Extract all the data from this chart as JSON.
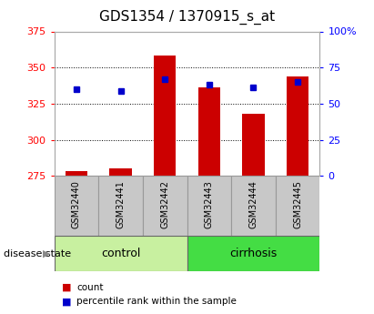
{
  "title": "GDS1354 / 1370915_s_at",
  "categories": [
    "GSM32440",
    "GSM32441",
    "GSM32442",
    "GSM32443",
    "GSM32444",
    "GSM32445"
  ],
  "red_values": [
    278,
    280,
    358,
    336,
    318,
    344
  ],
  "blue_values": [
    60,
    59,
    67,
    63,
    61,
    65
  ],
  "ylim_left": [
    275,
    375
  ],
  "ylim_right": [
    0,
    100
  ],
  "yticks_left": [
    275,
    300,
    325,
    350,
    375
  ],
  "yticks_right": [
    0,
    25,
    50,
    75,
    100
  ],
  "ytick_labels_right": [
    "0",
    "25",
    "50",
    "75",
    "100%"
  ],
  "group_labels": [
    "control",
    "cirrhosis"
  ],
  "group_ranges": [
    [
      0,
      3
    ],
    [
      3,
      6
    ]
  ],
  "group_colors_light": "#c8f0a0",
  "group_colors_dark": "#44dd44",
  "bar_color": "#cc0000",
  "marker_color": "#0000cc",
  "gray_box_color": "#c8c8c8",
  "legend_items": [
    "count",
    "percentile rank within the sample"
  ],
  "legend_colors": [
    "#cc0000",
    "#0000cc"
  ],
  "disease_state_label": "disease state",
  "bar_width": 0.5,
  "marker_size": 5,
  "title_fontsize": 11,
  "tick_fontsize": 8,
  "group_label_fontsize": 9,
  "cat_label_fontsize": 7
}
